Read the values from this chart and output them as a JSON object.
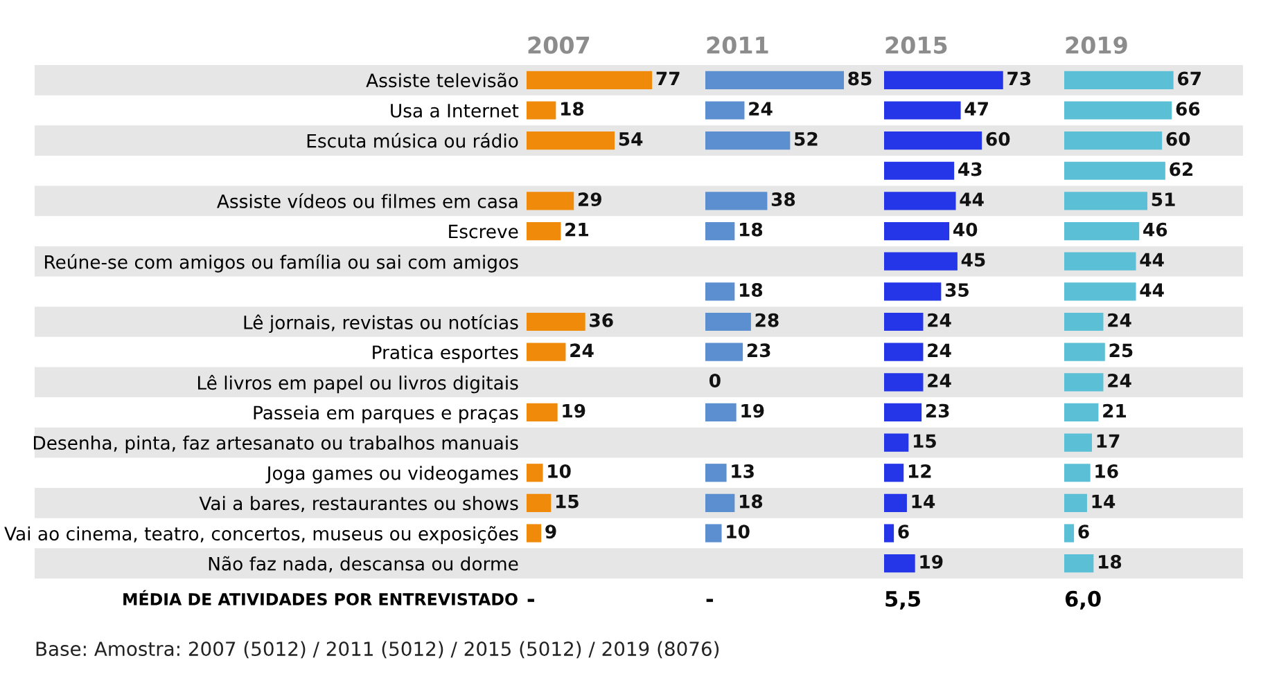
{
  "chart_data": [
    {
      "type": "bar",
      "orientation": "horizontal",
      "title": "2007",
      "categories": [
        "Assiste televisão",
        "Usa a Internet",
        "Escuta música ou rádio",
        null,
        "Assiste vídeos ou filmes em casa",
        "Escreve",
        "Reúne-se com amigos ou família ou sai com amigos",
        null,
        "Lê jornais, revistas ou notícias",
        "Pratica esportes",
        "Lê livros em papel ou livros digitais",
        "Passeia em parques e praças",
        "Desenha, pinta, faz artesanato ou trabalhos manuais",
        "Joga games ou videogames",
        "Vai a bares, restaurantes ou shows",
        "Vai ao cinema, teatro, concertos, museus ou exposições",
        "Não faz nada, descansa ou dorme"
      ],
      "series": [
        {
          "color": "#f08a0b",
          "values": [
            77,
            18,
            54,
            null,
            29,
            21,
            null,
            null,
            36,
            24,
            null,
            19,
            null,
            10,
            15,
            9,
            null
          ]
        }
      ],
      "data_labels": true,
      "tick_labels": "y",
      "annotations": [
        "-",
        "MÉDIA DE ATIVIDADES POR ENTREVISTADO",
        "Base: Amostra: 2007 (5012) / 2011 (5012) / 2015 (5012) / 2019 (8076)"
      ]
    },
    {
      "type": "bar",
      "orientation": "horizontal",
      "title": "2011",
      "series": [
        {
          "color": "#5b8fcf",
          "values": [
            85,
            24,
            52,
            null,
            38,
            18,
            null,
            18,
            28,
            23,
            0,
            19,
            null,
            13,
            18,
            10,
            null
          ]
        }
      ],
      "data_labels": true,
      "tick_labels": false,
      "annotations": [
        "-"
      ]
    },
    {
      "type": "bar",
      "orientation": "horizontal",
      "title": "2015",
      "series": [
        {
          "color": "#2436e8",
          "values": [
            73,
            47,
            60,
            43,
            44,
            40,
            45,
            35,
            24,
            24,
            24,
            23,
            15,
            12,
            14,
            6,
            19
          ]
        }
      ],
      "data_labels": true,
      "tick_labels": false,
      "annotations": [
        "5,5"
      ]
    },
    {
      "type": "bar",
      "orientation": "horizontal",
      "title": "2019",
      "series": [
        {
          "color": "#5bbfd6",
          "values": [
            67,
            66,
            60,
            62,
            51,
            46,
            44,
            44,
            24,
            25,
            24,
            21,
            17,
            16,
            14,
            6,
            18
          ]
        }
      ],
      "data_labels": true,
      "tick_labels": false,
      "annotations": [
        "6,0"
      ]
    }
  ]
}
